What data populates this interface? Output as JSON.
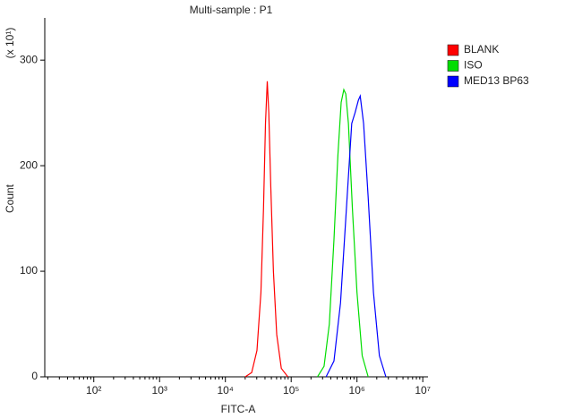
{
  "chart_data": {
    "type": "histogram-overlay",
    "title": "Multi-sample : P1",
    "x_label": "FITC-A",
    "y_label": "Count",
    "y_scale_label": "(x 10¹)",
    "x_log": true,
    "xlim": [
      18,
      12000000
    ],
    "xticks": [
      {
        "value": 100,
        "label": "10²"
      },
      {
        "value": 1000,
        "label": "10³"
      },
      {
        "value": 10000,
        "label": "10⁴"
      },
      {
        "value": 100000,
        "label": "10⁵"
      },
      {
        "value": 1000000,
        "label": "10⁶"
      },
      {
        "value": 10000000,
        "label": "10⁷"
      }
    ],
    "ylim": [
      0,
      340
    ],
    "yticks": [
      0,
      100,
      200,
      300
    ],
    "legend": "top-right",
    "series": [
      {
        "name": "BLANK",
        "color": "#ff0000",
        "x": [
          20000,
          25100,
          30200,
          34700,
          38000,
          40700,
          43300,
          45700,
          49000,
          53700,
          60300,
          70800,
          89100
        ],
        "values": [
          0,
          4,
          25,
          80,
          160,
          240,
          280,
          250,
          180,
          100,
          40,
          8,
          0
        ]
      },
      {
        "name": "ISO",
        "color": "#00dd00",
        "x": [
          251000,
          316000,
          380000,
          447000,
          513000,
          575000,
          631000,
          676000,
          741000,
          851000,
          1000000,
          1200000,
          1480000
        ],
        "values": [
          0,
          10,
          50,
          130,
          210,
          260,
          272,
          268,
          240,
          160,
          80,
          20,
          0
        ]
      },
      {
        "name": "MED13 BP63",
        "color": "#0000ff",
        "x": [
          339000,
          447000,
          562000,
          708000,
          832000,
          933000,
          1050000,
          1120000,
          1260000,
          1480000,
          1780000,
          2190000,
          2750000
        ],
        "values": [
          0,
          15,
          70,
          170,
          240,
          250,
          262,
          266,
          240,
          170,
          80,
          20,
          0
        ]
      }
    ]
  }
}
